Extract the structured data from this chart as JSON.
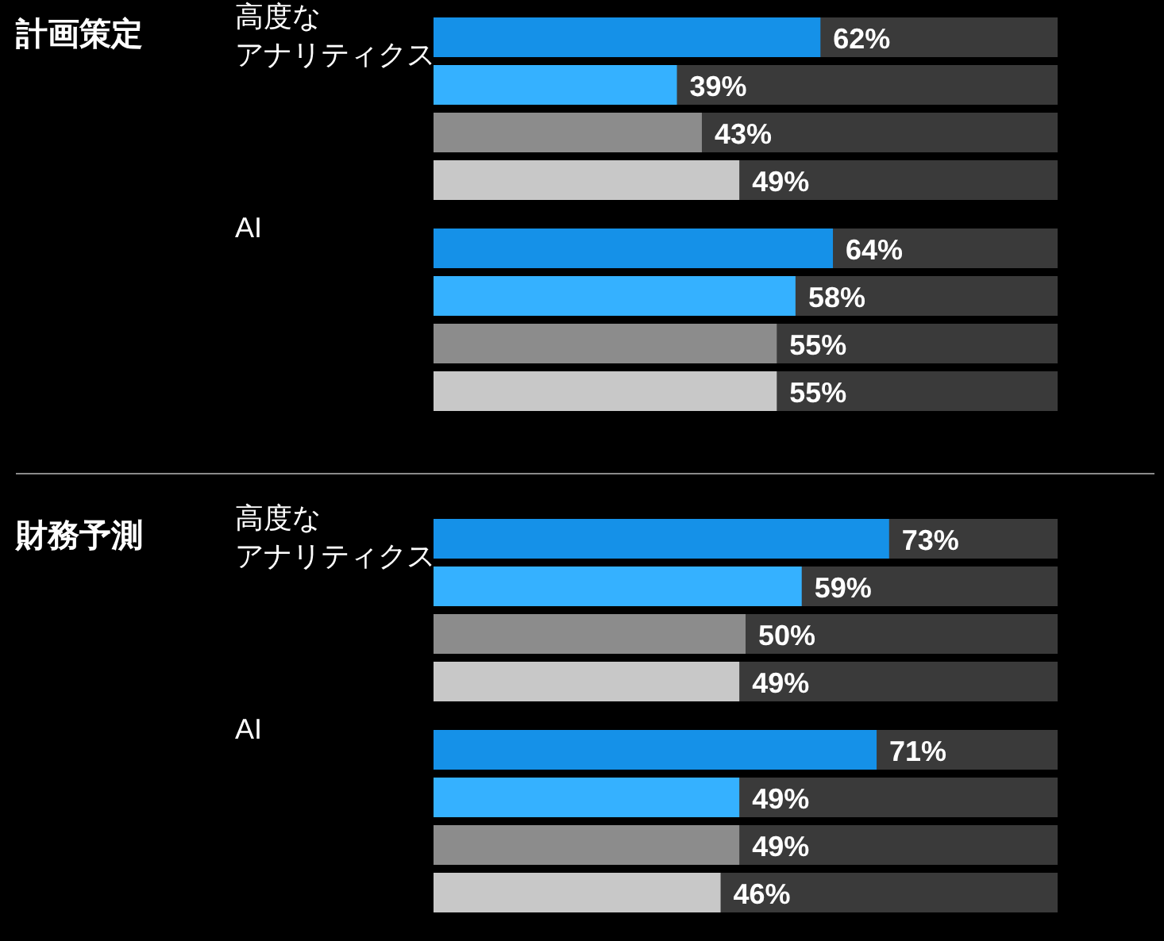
{
  "chart_data": [
    {
      "type": "bar",
      "orientation": "horizontal",
      "title": "計画策定",
      "categories": [
        "高度なアナリティクス",
        "AI"
      ],
      "xlim": [
        0,
        100
      ],
      "tick_labels": "y",
      "grid": false,
      "legend": false,
      "series": [
        {
          "color": "#1591e8",
          "values": [
            62,
            64
          ],
          "value_labels": [
            "62%",
            "64%"
          ]
        },
        {
          "color": "#35b1ff",
          "values": [
            39,
            58
          ],
          "value_labels": [
            "39%",
            "58%"
          ]
        },
        {
          "color": "#8c8c8c",
          "values": [
            43,
            55
          ],
          "value_labels": [
            "43%",
            "55%"
          ]
        },
        {
          "color": "#c8c8c8",
          "values": [
            49,
            55
          ],
          "value_labels": [
            "49%",
            "55%"
          ]
        }
      ]
    },
    {
      "type": "bar",
      "orientation": "horizontal",
      "title": "財務予測",
      "categories": [
        "高度なアナリティクス",
        "AI"
      ],
      "xlim": [
        0,
        100
      ],
      "tick_labels": "y",
      "grid": false,
      "legend": false,
      "series": [
        {
          "color": "#1591e8",
          "values": [
            73,
            71
          ],
          "value_labels": [
            "73%",
            "71%"
          ]
        },
        {
          "color": "#35b1ff",
          "values": [
            59,
            49
          ],
          "value_labels": [
            "59%",
            "49%"
          ]
        },
        {
          "color": "#8c8c8c",
          "values": [
            50,
            49
          ],
          "value_labels": [
            "50%",
            "49%"
          ]
        },
        {
          "color": "#c8c8c8",
          "values": [
            49,
            46
          ],
          "value_labels": [
            "49%",
            "46%"
          ]
        }
      ]
    }
  ]
}
